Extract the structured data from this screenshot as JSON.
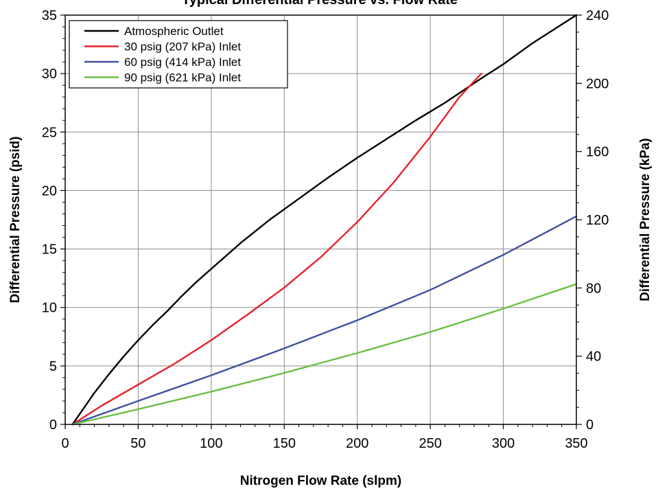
{
  "chart_data": {
    "type": "line",
    "title": "Typical Differential Pressure vs. Flow Rate",
    "xlabel": "Nitrogen Flow Rate (slpm)",
    "ylabel": "Differential Pressure (psid)",
    "y2label": "Differential Pressure (kPa)",
    "xlim": [
      0,
      350
    ],
    "ylim": [
      0,
      35
    ],
    "y2lim": [
      0,
      240
    ],
    "xticks": [
      0,
      50,
      100,
      150,
      200,
      250,
      300,
      350
    ],
    "yticks": [
      0,
      5,
      10,
      15,
      20,
      25,
      30,
      35
    ],
    "y2ticks": [
      0,
      40,
      80,
      120,
      160,
      200,
      240
    ],
    "grid": true,
    "legend_position": "top-left",
    "series": [
      {
        "name": "Atmospheric Outlet",
        "color": "#000000",
        "x": [
          5,
          10,
          20,
          30,
          40,
          50,
          60,
          70,
          80,
          90,
          100,
          120,
          140,
          150,
          160,
          180,
          200,
          220,
          240,
          260,
          285,
          300,
          320,
          350
        ],
        "y": [
          0,
          0.9,
          2.7,
          4.3,
          5.8,
          7.2,
          8.5,
          9.7,
          11.0,
          12.2,
          13.3,
          15.5,
          17.5,
          18.4,
          19.3,
          21.1,
          22.8,
          24.4,
          26.0,
          27.5,
          29.6,
          30.8,
          32.6,
          35.0
        ]
      },
      {
        "name": "30 psig (207 kPa) Inlet",
        "color": "#e8202a",
        "x": [
          5,
          25,
          50,
          75,
          100,
          125,
          150,
          175,
          200,
          225,
          250,
          270,
          285
        ],
        "y": [
          0,
          1.6,
          3.4,
          5.2,
          7.2,
          9.4,
          11.7,
          14.3,
          17.3,
          20.7,
          24.6,
          28.0,
          30.0
        ]
      },
      {
        "name": "60 psig (414 kPa) Inlet",
        "color": "#3f4f9f",
        "x": [
          5,
          50,
          100,
          150,
          200,
          250,
          300,
          350
        ],
        "y": [
          0,
          2.0,
          4.2,
          6.5,
          8.9,
          11.5,
          14.5,
          17.8
        ]
      },
      {
        "name": "90 psig (621 kPa) Inlet",
        "color": "#6abf45",
        "x": [
          5,
          50,
          100,
          150,
          200,
          250,
          300,
          350
        ],
        "y": [
          0,
          1.3,
          2.8,
          4.4,
          6.1,
          7.9,
          9.9,
          12.0
        ]
      }
    ]
  }
}
